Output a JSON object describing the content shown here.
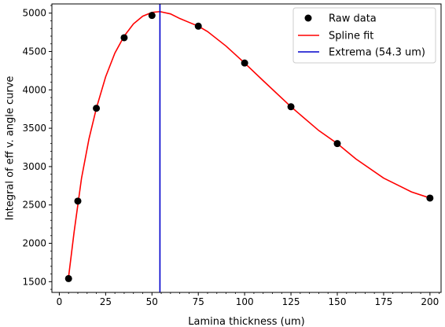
{
  "chart_data": {
    "type": "scatter",
    "title": "",
    "xlabel": "Lamina thickness (um)",
    "ylabel": "Integral of eff v. angle curve",
    "xlim": [
      -4,
      206
    ],
    "ylim": [
      1360,
      5120
    ],
    "x_ticks": [
      0,
      25,
      50,
      75,
      100,
      125,
      150,
      175,
      200
    ],
    "y_ticks": [
      1500,
      2000,
      2500,
      3000,
      3500,
      4000,
      4500,
      5000
    ],
    "x_minor_step": 5,
    "y_minor_step": 100,
    "grid": false,
    "legend_position": "upper right",
    "series": [
      {
        "name": "Raw data",
        "kind": "scatter",
        "color": "#000000",
        "x": [
          5,
          10,
          20,
          35,
          50,
          75,
          100,
          125,
          150,
          200
        ],
        "y": [
          1540,
          2550,
          3760,
          4680,
          4970,
          4830,
          4350,
          3780,
          3300,
          2590
        ]
      },
      {
        "name": "Spline fit",
        "kind": "line",
        "color": "#ff0000",
        "x": [
          5,
          8,
          12,
          16,
          20,
          25,
          30,
          35,
          40,
          45,
          50,
          54.3,
          60,
          65,
          70,
          75,
          80,
          90,
          100,
          110,
          125,
          140,
          150,
          160,
          175,
          190,
          200
        ],
        "y": [
          1560,
          2150,
          2850,
          3360,
          3760,
          4170,
          4480,
          4700,
          4860,
          4960,
          5010,
          5020,
          4990,
          4930,
          4880,
          4830,
          4760,
          4570,
          4350,
          4120,
          3780,
          3470,
          3300,
          3100,
          2850,
          2670,
          2590
        ]
      },
      {
        "name": "Extrema (54.3 um)",
        "kind": "vline",
        "color": "#0000cc",
        "x": 54.3
      }
    ]
  }
}
